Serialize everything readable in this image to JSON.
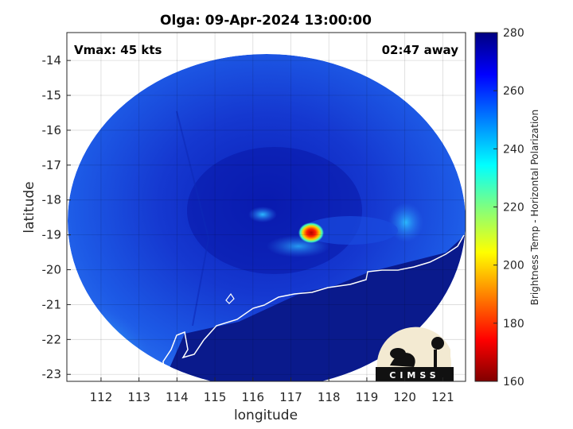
{
  "title": "Olga: 09-Apr-2024 13:00:00",
  "annotations": {
    "vmax": "Vmax: 45 kts",
    "time_away": "02:47 away"
  },
  "axes": {
    "xlabel": "longitude",
    "ylabel": "latitude",
    "xticks": [
      "112",
      "113",
      "114",
      "115",
      "116",
      "117",
      "118",
      "119",
      "120",
      "121"
    ],
    "yticks": [
      "-14",
      "-15",
      "-16",
      "-17",
      "-18",
      "-19",
      "-20",
      "-21",
      "-22",
      "-23"
    ],
    "xlim": [
      111.1,
      121.6
    ],
    "ylim": [
      -23.2,
      -13.2
    ],
    "grid": true
  },
  "colorbar": {
    "label": "Brightness Temp - Horizontal Polarization",
    "ticks": [
      "280",
      "260",
      "240",
      "220",
      "200",
      "180",
      "160"
    ],
    "range": [
      160,
      280
    ],
    "colormap": "jet"
  },
  "logo": {
    "text": "CIMSS"
  },
  "colors": {
    "land": "#0a1a8c",
    "ocean_base": "#1a4de0",
    "storm_core": "#e81a10",
    "coast": "#ffffff"
  }
}
